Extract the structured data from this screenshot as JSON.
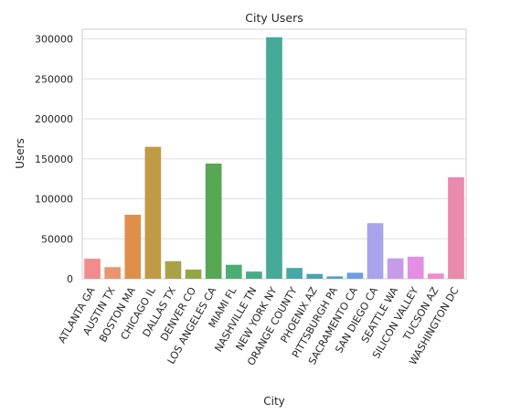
{
  "chart_data": {
    "type": "bar",
    "title": "City Users",
    "xlabel": "City",
    "ylabel": "Users",
    "ylim": [
      0,
      312000
    ],
    "yticks": [
      0,
      50000,
      100000,
      150000,
      200000,
      250000,
      300000
    ],
    "grid": true,
    "categories": [
      "ATLANTA GA",
      "AUSTIN TX",
      "BOSTON MA",
      "CHICAGO IL",
      "DALLAS TX",
      "DENVER CO",
      "LOS ANGELES CA",
      "MIAMI FL",
      "NASHVILLE TN",
      "NEW YORK NY",
      "ORANGE COUNTY",
      "PHOENIX AZ",
      "PITTSBURGH PA",
      "SACRAMENTO CA",
      "SAN DIEGO CA",
      "SEATTLE WA",
      "SILICON VALLEY",
      "TUCSON AZ",
      "WASHINGTON DC"
    ],
    "values": [
      25000,
      14500,
      80000,
      165000,
      22000,
      11500,
      144000,
      17500,
      9000,
      302000,
      13500,
      6000,
      3000,
      7500,
      69500,
      25500,
      27500,
      6500,
      127000
    ],
    "colors": [
      "#f08c8c",
      "#e9966e",
      "#e08f4a",
      "#c09a45",
      "#a9a147",
      "#93a644",
      "#57a753",
      "#4aad74",
      "#49ab8a",
      "#45aa98",
      "#45a9a6",
      "#47a5b2",
      "#4fa1c2",
      "#6d9de4",
      "#a9a3ec",
      "#c79be9",
      "#e38fe5",
      "#ee8acc",
      "#e98aae"
    ]
  }
}
